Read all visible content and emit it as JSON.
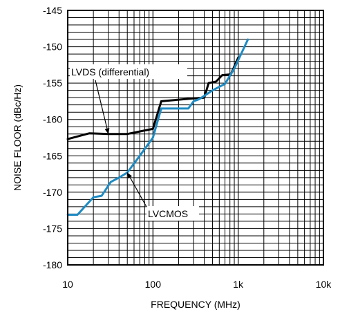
{
  "chart_data": {
    "type": "line",
    "xlabel": "FREQUENCY (MHz)",
    "ylabel": "NOISE FLOOR (dBc/Hz)",
    "xscale": "log",
    "xlim": [
      10,
      10000
    ],
    "ylim": [
      -180,
      -145
    ],
    "x_ticks": [
      10,
      100,
      1000,
      10000
    ],
    "x_tick_labels": [
      "10",
      "100",
      "1k",
      "10k"
    ],
    "y_ticks": [
      -145,
      -150,
      -155,
      -160,
      -165,
      -170,
      -175,
      -180
    ],
    "y_tick_labels": [
      "-145",
      "-150",
      "-155",
      "-160",
      "-165",
      "-170",
      "-175",
      "-180"
    ],
    "grid": true,
    "series": [
      {
        "name": "LVDS (differential)",
        "color": "#000000",
        "points": [
          [
            10,
            -162.7
          ],
          [
            18,
            -161.9
          ],
          [
            30,
            -162.0
          ],
          [
            50,
            -162.0
          ],
          [
            90,
            -161.4
          ],
          [
            100,
            -161.3
          ],
          [
            125,
            -157.5
          ],
          [
            300,
            -157.1
          ],
          [
            400,
            -157.0
          ],
          [
            450,
            -155.0
          ],
          [
            550,
            -154.8
          ],
          [
            650,
            -153.9
          ],
          [
            820,
            -153.8
          ],
          [
            1000,
            -151.5
          ]
        ]
      },
      {
        "name": "LVCMOS",
        "color": "#1e8bc3",
        "points": [
          [
            10,
            -173.1
          ],
          [
            13,
            -173.1
          ],
          [
            20,
            -170.7
          ],
          [
            25,
            -170.5
          ],
          [
            32,
            -168.6
          ],
          [
            40,
            -168.0
          ],
          [
            50,
            -167.3
          ],
          [
            70,
            -165.0
          ],
          [
            100,
            -162.5
          ],
          [
            125,
            -158.5
          ],
          [
            180,
            -158.5
          ],
          [
            260,
            -158.5
          ],
          [
            300,
            -157.5
          ],
          [
            350,
            -157.2
          ],
          [
            500,
            -156.0
          ],
          [
            700,
            -155.1
          ],
          [
            900,
            -153.0
          ],
          [
            1300,
            -149.0
          ]
        ]
      }
    ],
    "annotations": [
      {
        "text": "LVDS (differential)",
        "series": "LVDS (differential)",
        "arrow_to": [
          30,
          -162.0
        ]
      },
      {
        "text": "LVCMOS",
        "series": "LVCMOS",
        "arrow_to": [
          50,
          -167.3
        ]
      }
    ]
  }
}
